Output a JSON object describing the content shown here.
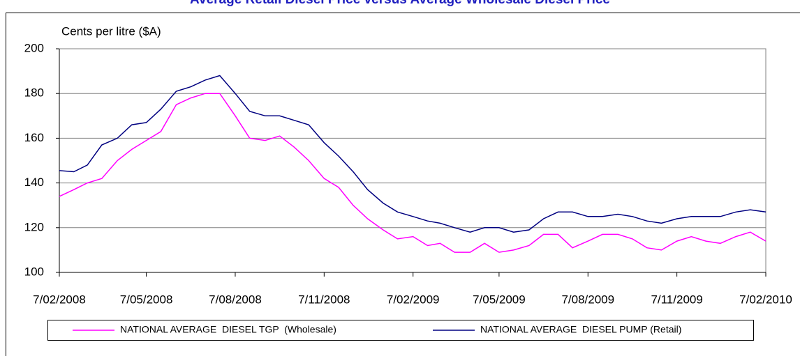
{
  "chart_data": {
    "type": "line",
    "title": "Average Retail Diesel Price versus Average Wholesale Diesel Price",
    "y_label": "Cents per litre ($A)",
    "x": [
      "7/02/2008",
      "22/02/2008",
      "7/03/2008",
      "22/03/2008",
      "7/04/2008",
      "22/04/2008",
      "7/05/2008",
      "22/05/2008",
      "7/06/2008",
      "22/06/2008",
      "7/07/2008",
      "22/07/2008",
      "7/08/2008",
      "22/08/2008",
      "7/09/2008",
      "22/09/2008",
      "7/10/2008",
      "22/10/2008",
      "7/11/2008",
      "22/11/2008",
      "7/12/2008",
      "22/12/2008",
      "7/01/2009",
      "22/01/2009",
      "7/02/2009",
      "22/02/2009",
      "7/03/2009",
      "22/03/2009",
      "7/04/2009",
      "22/04/2009",
      "7/05/2009",
      "22/05/2009",
      "7/06/2009",
      "22/06/2009",
      "7/07/2009",
      "22/07/2009",
      "7/08/2009",
      "22/08/2009",
      "7/09/2009",
      "22/09/2009",
      "7/10/2009",
      "22/10/2009",
      "7/11/2009",
      "22/11/2009",
      "7/12/2009",
      "22/12/2009",
      "7/01/2010",
      "22/01/2010",
      "7/02/2010"
    ],
    "series": [
      {
        "name": "NATIONAL AVERAGE  DIESEL TGP  (Wholesale)",
        "color": "#ff00ff",
        "values": [
          134,
          137,
          140,
          142,
          150,
          155,
          159,
          163,
          175,
          178,
          180,
          180,
          170,
          160,
          159,
          161,
          156,
          150,
          142,
          138,
          130,
          124,
          119,
          115,
          116,
          112,
          113,
          109,
          109,
          113,
          109,
          110,
          112,
          117,
          117,
          111,
          114,
          117,
          117,
          115,
          111,
          110,
          114,
          116,
          114,
          113,
          116,
          118,
          114
        ]
      },
      {
        "name": "NATIONAL AVERAGE  DIESEL PUMP (Retail)",
        "color": "#000080",
        "values": [
          145.5,
          145,
          148,
          157,
          160,
          166,
          167,
          173,
          181,
          183,
          186,
          188,
          180,
          172,
          170,
          170,
          168,
          166,
          158,
          152,
          145,
          137,
          131,
          127,
          125,
          123,
          122,
          120,
          118,
          120,
          120,
          118,
          119,
          124,
          127,
          127,
          125,
          125,
          126,
          125,
          123,
          122,
          124,
          125,
          125,
          125,
          127,
          128,
          127
        ]
      }
    ],
    "xlim": [
      "7/02/2008",
      "7/02/2010"
    ],
    "xticks": [
      "7/02/2008",
      "7/05/2008",
      "7/08/2008",
      "7/11/2008",
      "7/02/2009",
      "7/05/2009",
      "7/08/2009",
      "7/11/2009",
      "7/02/2010"
    ],
    "ylim": [
      100,
      200
    ],
    "yticks": [
      100,
      120,
      140,
      160,
      180,
      200
    ],
    "grid": true,
    "legend": "bottom"
  }
}
